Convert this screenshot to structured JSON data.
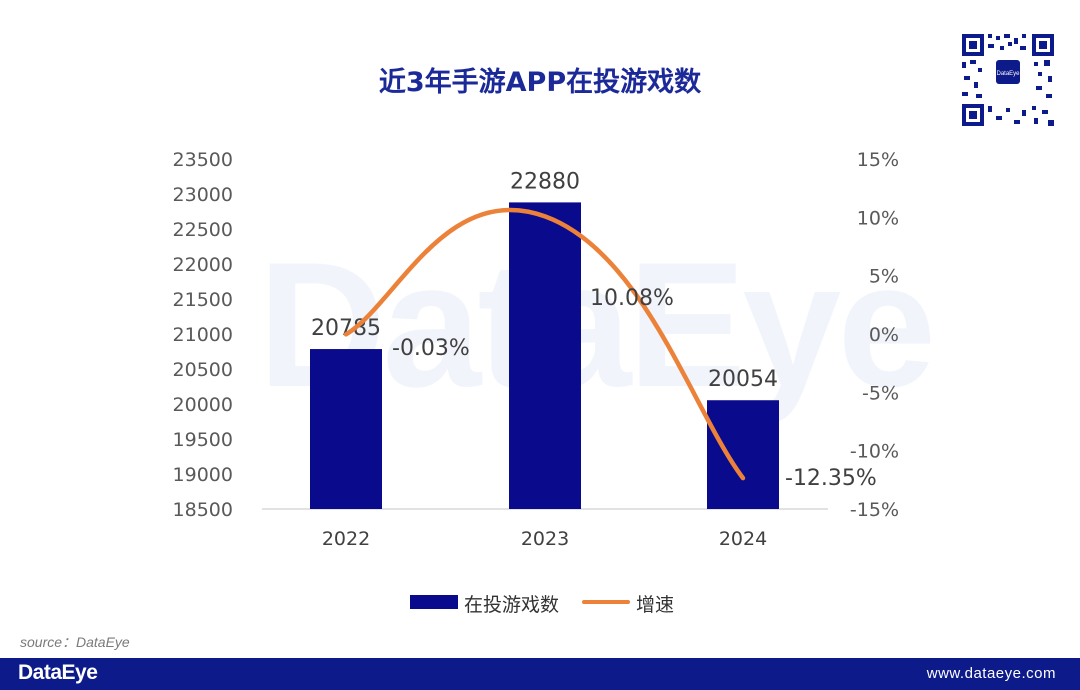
{
  "title": "近3年手游APP在投游戏数",
  "watermark": "DataEye",
  "source": "source：DataEye",
  "footer": {
    "logo": "DataEye",
    "url": "www.dataeye.com"
  },
  "qr_icon": "qr-code-icon",
  "colors": {
    "bar": "#0a0a8c",
    "line": "#ec8139",
    "brand": "#0d1a8a",
    "title": "#1c2a99"
  },
  "chart_data": {
    "type": "bar",
    "categories": [
      "2022",
      "2023",
      "2024"
    ],
    "series": [
      {
        "name": "在投游戏数",
        "type": "bar",
        "axis": "left",
        "values": [
          20785,
          22880,
          20054
        ],
        "labels": [
          "20785",
          "22880",
          "20054"
        ]
      },
      {
        "name": "增速",
        "type": "line",
        "axis": "right",
        "values": [
          -0.03,
          10.08,
          -12.35
        ],
        "labels": [
          "-0.03%",
          "10.08%",
          "-12.35%"
        ]
      }
    ],
    "y_left": {
      "min": 18500,
      "max": 23500,
      "ticks": [
        "23500",
        "23000",
        "22500",
        "22000",
        "21500",
        "21000",
        "20500",
        "20000",
        "19500",
        "19000",
        "18500"
      ]
    },
    "y_right": {
      "min": -15,
      "max": 15,
      "ticks": [
        "15%",
        "10%",
        "5%",
        "0%",
        "-5%",
        "-10%",
        "-15%"
      ]
    },
    "legend": "bottom",
    "grid": false
  }
}
